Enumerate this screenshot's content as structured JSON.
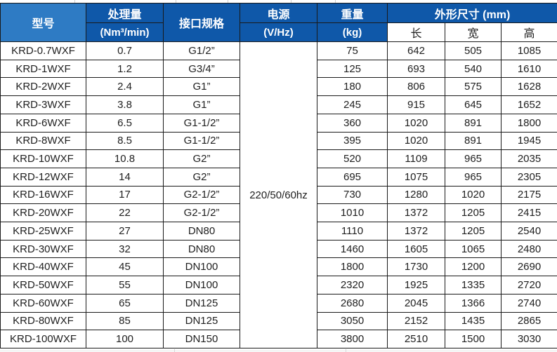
{
  "table": {
    "header": {
      "col_model": "型号",
      "col_capacity_line1": "处理量",
      "col_capacity_line2": "(Nm³/min)",
      "col_interface": "接口规格",
      "col_power_line1": "电源",
      "col_power_line2": "(V/Hz)",
      "col_weight_line1": "重量",
      "col_weight_line2": "(kg)",
      "col_dimensions": "外形尺寸 (mm)",
      "col_length": "长",
      "col_width": "宽",
      "col_height": "高"
    },
    "power_value": "220/50/60hz",
    "rows": [
      {
        "model": "KRD-0.7WXF",
        "capacity": "0.7",
        "interface": "G1/2”",
        "weight": "75",
        "length": "642",
        "width": "505",
        "height": "1085"
      },
      {
        "model": "KRD-1WXF",
        "capacity": "1.2",
        "interface": "G3/4”",
        "weight": "125",
        "length": "693",
        "width": "540",
        "height": "1610"
      },
      {
        "model": "KRD-2WXF",
        "capacity": "2.4",
        "interface": "G1”",
        "weight": "180",
        "length": "806",
        "width": "575",
        "height": "1628"
      },
      {
        "model": "KRD-3WXF",
        "capacity": "3.8",
        "interface": "G1”",
        "weight": "245",
        "length": "915",
        "width": "645",
        "height": "1652"
      },
      {
        "model": "KRD-6WXF",
        "capacity": "6.5",
        "interface": "G1-1/2”",
        "weight": "360",
        "length": "1020",
        "width": "891",
        "height": "1800"
      },
      {
        "model": "KRD-8WXF",
        "capacity": "8.5",
        "interface": "G1-1/2”",
        "weight": "395",
        "length": "1020",
        "width": "891",
        "height": "1945"
      },
      {
        "model": "KRD-10WXF",
        "capacity": "10.8",
        "interface": "G2”",
        "weight": "520",
        "length": "1109",
        "width": "965",
        "height": "2035"
      },
      {
        "model": "KRD-12WXF",
        "capacity": "14",
        "interface": "G2”",
        "weight": "695",
        "length": "1075",
        "width": "965",
        "height": "2305"
      },
      {
        "model": "KRD-16WXF",
        "capacity": "17",
        "interface": "G2-1/2”",
        "weight": "730",
        "length": "1280",
        "width": "1020",
        "height": "2175"
      },
      {
        "model": "KRD-20WXF",
        "capacity": "22",
        "interface": "G2-1/2”",
        "weight": "1010",
        "length": "1372",
        "width": "1205",
        "height": "2415"
      },
      {
        "model": "KRD-25WXF",
        "capacity": "27",
        "interface": "DN80",
        "weight": "1110",
        "length": "1372",
        "width": "1205",
        "height": "2540"
      },
      {
        "model": "KRD-30WXF",
        "capacity": "32",
        "interface": "DN80",
        "weight": "1460",
        "length": "1605",
        "width": "1065",
        "height": "2480"
      },
      {
        "model": "KRD-40WXF",
        "capacity": "45",
        "interface": "DN100",
        "weight": "1800",
        "length": "1730",
        "width": "1200",
        "height": "2690"
      },
      {
        "model": "KRD-50WXF",
        "capacity": "55",
        "interface": "DN100",
        "weight": "2320",
        "length": "1925",
        "width": "1335",
        "height": "2720"
      },
      {
        "model": "KRD-60WXF",
        "capacity": "65",
        "interface": "DN125",
        "weight": "2680",
        "length": "2045",
        "width": "1366",
        "height": "2740"
      },
      {
        "model": "KRD-80WXF",
        "capacity": "85",
        "interface": "DN125",
        "weight": "3050",
        "length": "2152",
        "width": "1435",
        "height": "2865"
      },
      {
        "model": "KRD-100WXF",
        "capacity": "100",
        "interface": "DN150",
        "weight": "3800",
        "length": "2510",
        "width": "1500",
        "height": "3030"
      }
    ]
  },
  "colors": {
    "header_light_blue": "#2e7bc4",
    "header_dark_blue": "#0f58a9",
    "border": "#1a1a1a",
    "header_text": "#ffffff",
    "data_text": "#1f1f1f"
  }
}
